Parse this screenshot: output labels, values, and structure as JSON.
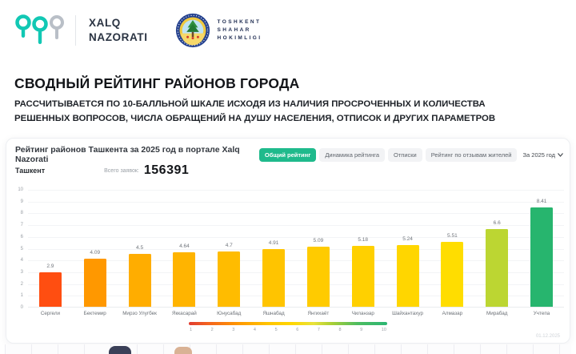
{
  "header": {
    "brand_name_line1": "XALQ",
    "brand_name_line2": "NAZORATI",
    "emblem_text_line1": "TOSHKENT",
    "emblem_text_line2": "SHAHAR",
    "emblem_text_line3": "HOKIMLIGI"
  },
  "hero": {
    "title": "СВОДНЫЙ РЕЙТИНГ РАЙОНОВ ГОРОДА",
    "subtitle_line1": "РАССЧИТЫВАЕТСЯ ПО 10-БАЛЛЬНОЙ ШКАЛЕ ИСХОДЯ ИЗ НАЛИЧИЯ ПРОСРОЧЕННЫХ И КОЛИЧЕСТВА",
    "subtitle_line2": "РЕШЕННЫХ ВОПРОСОВ, ЧИСЛА ОБРАЩЕНИЙ НА ДУШУ НАСЕЛЕНИЯ, ОТПИСОК И ДРУГИХ ПАРАМЕТРОВ"
  },
  "panel": {
    "title": "Рейтинг районов Ташкента за 2025 год в портале Xalq Nazorati",
    "tabs": [
      {
        "label": "Общий рейтинг",
        "active": true
      },
      {
        "label": "Динамика рейтинга",
        "active": false
      },
      {
        "label": "Отписки",
        "active": false
      },
      {
        "label": "Рейтинг по отзывам жителей",
        "active": false
      }
    ],
    "year_filter": "За 2025 год",
    "city_label": "Ташкент",
    "total_label": "Всего заявок:",
    "total_value": "156391",
    "footer_stamp": "01.12.2025"
  },
  "chart_data": {
    "type": "bar",
    "title": "Рейтинг районов Ташкента за 2025 год в портале Xalq Nazorati",
    "categories": [
      "Сергели",
      "Бектемир",
      "Мирзо Улугбек",
      "Яккасарай",
      "Юнусабад",
      "Яшнабад",
      "Янгихаёт",
      "Чиланзар",
      "Шайхантахур",
      "Алмазар",
      "Мирабад",
      "Учтепа"
    ],
    "values": [
      2.9,
      4.09,
      4.5,
      4.64,
      4.7,
      4.91,
      5.09,
      5.18,
      5.24,
      5.51,
      6.6,
      8.41
    ],
    "bar_colors": [
      "#ff4e11",
      "#ff9800",
      "#ffad00",
      "#ffb400",
      "#ffbc00",
      "#ffc400",
      "#ffcb00",
      "#ffd000",
      "#ffd600",
      "#ffdd00",
      "#bcd632",
      "#27b56e"
    ],
    "xlabel": "",
    "ylabel": "",
    "ylim": [
      0,
      10
    ],
    "y_ticks": [
      0,
      1,
      2,
      3,
      4,
      5,
      6,
      7,
      8,
      9,
      10
    ],
    "grid": true,
    "legend": {
      "type": "gradient-scale",
      "position": "bottom-center",
      "ticks": [
        1,
        2,
        3,
        4,
        5,
        6,
        7,
        8,
        9,
        10
      ],
      "gradient_colors": [
        "#e03c31",
        "#ff9800",
        "#ffd600",
        "#aacf35",
        "#2bb673"
      ]
    }
  },
  "colors": {
    "accent_teal": "#1fba8c",
    "brand_teal": "#12c8b4",
    "pin_gray": "#b9bfc7",
    "bar_red": "#ff4e11",
    "bar_green": "#27b56e"
  }
}
